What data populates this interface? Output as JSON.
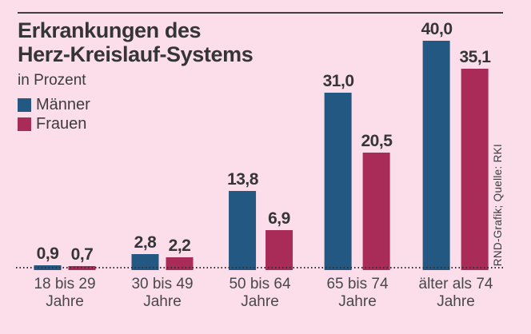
{
  "chart_data": {
    "type": "bar",
    "title": "Erkrankungen des Herz-Kreislauf-Systems",
    "title_lines": [
      "Erkrankungen des",
      "Herz-Kreislauf-Systems"
    ],
    "subtitle": "in Prozent",
    "source": "RND-Grafik; Quelle: RKI",
    "categories": [
      [
        "18 bis 29",
        "Jahre"
      ],
      [
        "30 bis 49",
        "Jahre"
      ],
      [
        "50 bis 64",
        "Jahre"
      ],
      [
        "65 bis 74",
        "Jahre"
      ],
      [
        "älter als 74",
        "Jahre"
      ]
    ],
    "series": [
      {
        "name": "Männer",
        "color": "#235882",
        "values": [
          0.9,
          2.8,
          13.8,
          31.0,
          40.0
        ]
      },
      {
        "name": "Frauen",
        "color": "#a82b58",
        "values": [
          0.7,
          2.2,
          6.9,
          20.5,
          35.1
        ]
      }
    ],
    "value_labels": [
      [
        "0,9",
        "2,8",
        "13,8",
        "31,0",
        "40,0"
      ],
      [
        "0,7",
        "2,2",
        "6,9",
        "20,5",
        "35,1"
      ]
    ],
    "ylim": [
      0,
      40
    ],
    "grid": false,
    "legend_position": "top-left",
    "baseline_style": "dotted",
    "background_color": "#fbdee9",
    "text_color": "#353539"
  }
}
